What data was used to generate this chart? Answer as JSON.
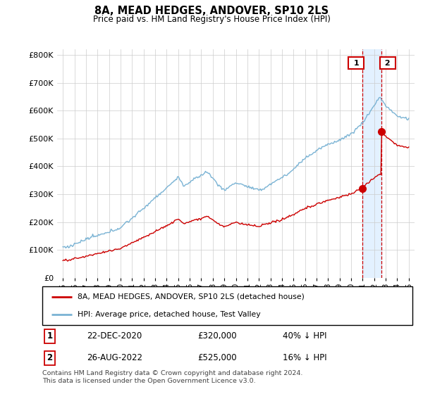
{
  "title": "8A, MEAD HEDGES, ANDOVER, SP10 2LS",
  "subtitle": "Price paid vs. HM Land Registry's House Price Index (HPI)",
  "ylim": [
    0,
    820000
  ],
  "yticks": [
    0,
    100000,
    200000,
    300000,
    400000,
    500000,
    600000,
    700000,
    800000
  ],
  "ytick_labels": [
    "£0",
    "£100K",
    "£200K",
    "£300K",
    "£400K",
    "£500K",
    "£600K",
    "£700K",
    "£800K"
  ],
  "hpi_color": "#7ab3d4",
  "price_color": "#cc0000",
  "shade_color": "#ddeeff",
  "legend_label_red": "8A, MEAD HEDGES, ANDOVER, SP10 2LS (detached house)",
  "legend_label_blue": "HPI: Average price, detached house, Test Valley",
  "annotation1_date": "22-DEC-2020",
  "annotation1_price": "£320,000",
  "annotation1_pct": "40% ↓ HPI",
  "annotation2_date": "26-AUG-2022",
  "annotation2_price": "£525,000",
  "annotation2_pct": "16% ↓ HPI",
  "footnote": "Contains HM Land Registry data © Crown copyright and database right 2024.\nThis data is licensed under the Open Government Licence v3.0.",
  "sale1_year": 2020.97,
  "sale1_price": 320000,
  "sale2_year": 2022.65,
  "sale2_price": 525000
}
